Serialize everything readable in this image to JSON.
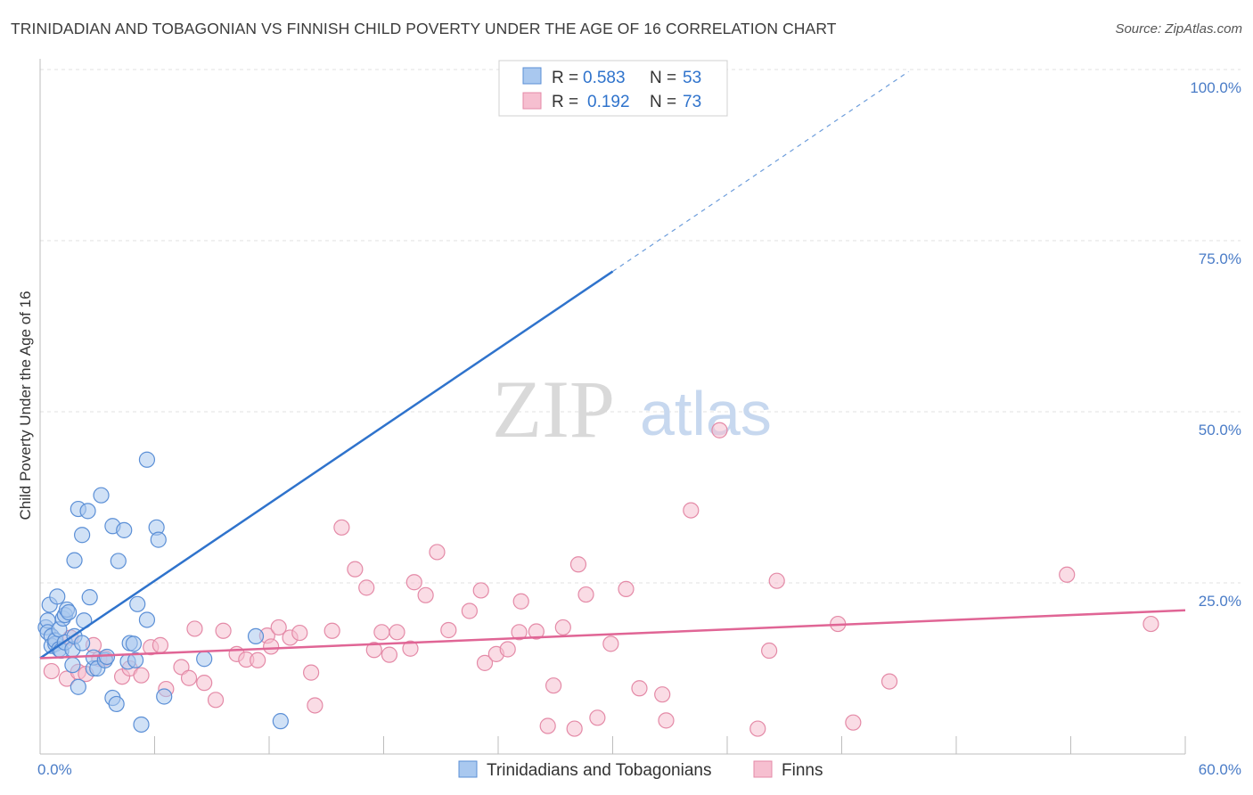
{
  "title": "TRINIDADIAN AND TOBAGONIAN VS FINNISH CHILD POVERTY UNDER THE AGE OF 16 CORRELATION CHART",
  "source": "Source: ZipAtlas.com",
  "watermark": {
    "zip": "ZIP",
    "atlas": "atlas"
  },
  "colors": {
    "blue_fill": "#a9c8ef",
    "blue_stroke": "#5b8fd6",
    "blue_line": "#2f73cc",
    "pink_fill": "#f6bfd0",
    "pink_stroke": "#e48aa7",
    "pink_line": "#e06595",
    "tick_label": "#4a7cc7",
    "grid": "#e1e1e1"
  },
  "legend": {
    "rows": [
      {
        "r_label": "R = ",
        "r_value": "0.583",
        "n_label": "N = ",
        "n_value": "53"
      },
      {
        "r_label": "R = ",
        "r_value": "0.192",
        "n_label": "N = ",
        "n_value": "73"
      }
    ]
  },
  "chart_data": {
    "type": "scatter",
    "title": "TRINIDADIAN AND TOBAGONIAN VS FINNISH CHILD POVERTY UNDER THE AGE OF 16 CORRELATION CHART",
    "xlabel": "",
    "ylabel": "Child Poverty Under the Age of 16",
    "xlim": [
      0,
      60
    ],
    "ylim": [
      0,
      100
    ],
    "x_tick_labels": [
      "0.0%",
      "60.0%"
    ],
    "y_ticks": [
      25,
      50,
      75,
      100
    ],
    "y_tick_labels": [
      "25.0%",
      "50.0%",
      "75.0%",
      "100.0%"
    ],
    "grid": true,
    "legend_position": "bottom-center",
    "series": [
      {
        "name": "Trinidadians and Tobagonians",
        "R": 0.583,
        "N": 53,
        "trend": {
          "x0": 0,
          "y0": 14.0,
          "x1": 30,
          "y1": 70.5,
          "dashed_to_x": 45.5
        },
        "points": [
          [
            0.3,
            18.5
          ],
          [
            0.4,
            19.5
          ],
          [
            0.4,
            17.8
          ],
          [
            0.5,
            21.8
          ],
          [
            0.6,
            17.2
          ],
          [
            0.6,
            15.8
          ],
          [
            0.8,
            16.1
          ],
          [
            0.8,
            16.6
          ],
          [
            0.9,
            23.0
          ],
          [
            1.0,
            18.2
          ],
          [
            1.0,
            15.3
          ],
          [
            1.1,
            15.1
          ],
          [
            1.2,
            19.8
          ],
          [
            1.3,
            16.3
          ],
          [
            1.3,
            20.3
          ],
          [
            1.4,
            21.1
          ],
          [
            1.5,
            20.7
          ],
          [
            1.7,
            15.3
          ],
          [
            1.7,
            13.0
          ],
          [
            1.8,
            17.2
          ],
          [
            1.8,
            28.3
          ],
          [
            2.0,
            35.8
          ],
          [
            2.0,
            9.8
          ],
          [
            2.2,
            16.2
          ],
          [
            2.2,
            32.0
          ],
          [
            2.3,
            19.5
          ],
          [
            2.5,
            35.5
          ],
          [
            2.6,
            22.9
          ],
          [
            2.8,
            12.5
          ],
          [
            2.8,
            14.1
          ],
          [
            3.0,
            12.5
          ],
          [
            3.2,
            37.8
          ],
          [
            3.4,
            13.7
          ],
          [
            3.5,
            14.2
          ],
          [
            3.8,
            8.2
          ],
          [
            3.8,
            33.3
          ],
          [
            4.0,
            7.3
          ],
          [
            4.1,
            28.2
          ],
          [
            4.4,
            32.7
          ],
          [
            4.6,
            13.5
          ],
          [
            4.7,
            16.2
          ],
          [
            4.9,
            16.1
          ],
          [
            5.0,
            13.7
          ],
          [
            5.1,
            21.9
          ],
          [
            5.3,
            4.3
          ],
          [
            5.6,
            19.6
          ],
          [
            5.6,
            43.0
          ],
          [
            6.1,
            33.1
          ],
          [
            6.2,
            31.3
          ],
          [
            6.5,
            8.4
          ],
          [
            8.6,
            13.9
          ],
          [
            11.3,
            17.2
          ],
          [
            12.6,
            4.8
          ]
        ]
      },
      {
        "name": "Finns",
        "R": 0.192,
        "N": 73,
        "trend": {
          "x0": 0,
          "y0": 14.0,
          "x1": 60,
          "y1": 21.0
        },
        "points": [
          [
            0.6,
            12.1
          ],
          [
            1.4,
            11.0
          ],
          [
            1.6,
            17.0
          ],
          [
            2.0,
            12.0
          ],
          [
            2.4,
            11.7
          ],
          [
            2.8,
            15.9
          ],
          [
            3.1,
            13.9
          ],
          [
            3.4,
            14.0
          ],
          [
            4.3,
            11.3
          ],
          [
            4.7,
            12.5
          ],
          [
            5.3,
            11.5
          ],
          [
            5.8,
            15.6
          ],
          [
            6.3,
            15.9
          ],
          [
            6.6,
            9.5
          ],
          [
            7.4,
            12.7
          ],
          [
            7.8,
            11.1
          ],
          [
            8.1,
            18.3
          ],
          [
            8.6,
            10.4
          ],
          [
            9.2,
            7.9
          ],
          [
            9.6,
            18.0
          ],
          [
            10.3,
            14.6
          ],
          [
            10.8,
            13.8
          ],
          [
            11.4,
            13.7
          ],
          [
            11.9,
            17.3
          ],
          [
            12.1,
            15.7
          ],
          [
            12.5,
            18.5
          ],
          [
            13.1,
            17.0
          ],
          [
            13.6,
            17.7
          ],
          [
            14.2,
            11.9
          ],
          [
            14.4,
            7.1
          ],
          [
            15.3,
            18.0
          ],
          [
            15.8,
            33.1
          ],
          [
            16.5,
            27.0
          ],
          [
            17.1,
            24.3
          ],
          [
            17.5,
            15.2
          ],
          [
            17.9,
            17.8
          ],
          [
            18.3,
            14.5
          ],
          [
            18.7,
            17.8
          ],
          [
            19.4,
            15.4
          ],
          [
            19.6,
            25.1
          ],
          [
            20.2,
            23.2
          ],
          [
            20.8,
            29.5
          ],
          [
            21.4,
            18.1
          ],
          [
            22.5,
            20.9
          ],
          [
            23.1,
            23.9
          ],
          [
            23.3,
            13.3
          ],
          [
            23.9,
            14.6
          ],
          [
            24.5,
            15.3
          ],
          [
            25.1,
            17.8
          ],
          [
            25.2,
            22.3
          ],
          [
            26.0,
            17.9
          ],
          [
            26.6,
            4.1
          ],
          [
            26.9,
            10.0
          ],
          [
            27.4,
            18.5
          ],
          [
            28.0,
            3.7
          ],
          [
            28.2,
            27.7
          ],
          [
            28.6,
            23.3
          ],
          [
            29.2,
            5.3
          ],
          [
            29.9,
            16.1
          ],
          [
            30.7,
            24.1
          ],
          [
            31.4,
            9.6
          ],
          [
            32.6,
            8.7
          ],
          [
            32.8,
            4.9
          ],
          [
            34.1,
            35.6
          ],
          [
            35.6,
            47.3
          ],
          [
            37.6,
            3.7
          ],
          [
            38.2,
            15.1
          ],
          [
            38.6,
            25.3
          ],
          [
            41.8,
            19.0
          ],
          [
            42.6,
            4.6
          ],
          [
            44.5,
            10.6
          ],
          [
            53.8,
            26.2
          ],
          [
            58.2,
            19.0
          ]
        ]
      }
    ]
  }
}
